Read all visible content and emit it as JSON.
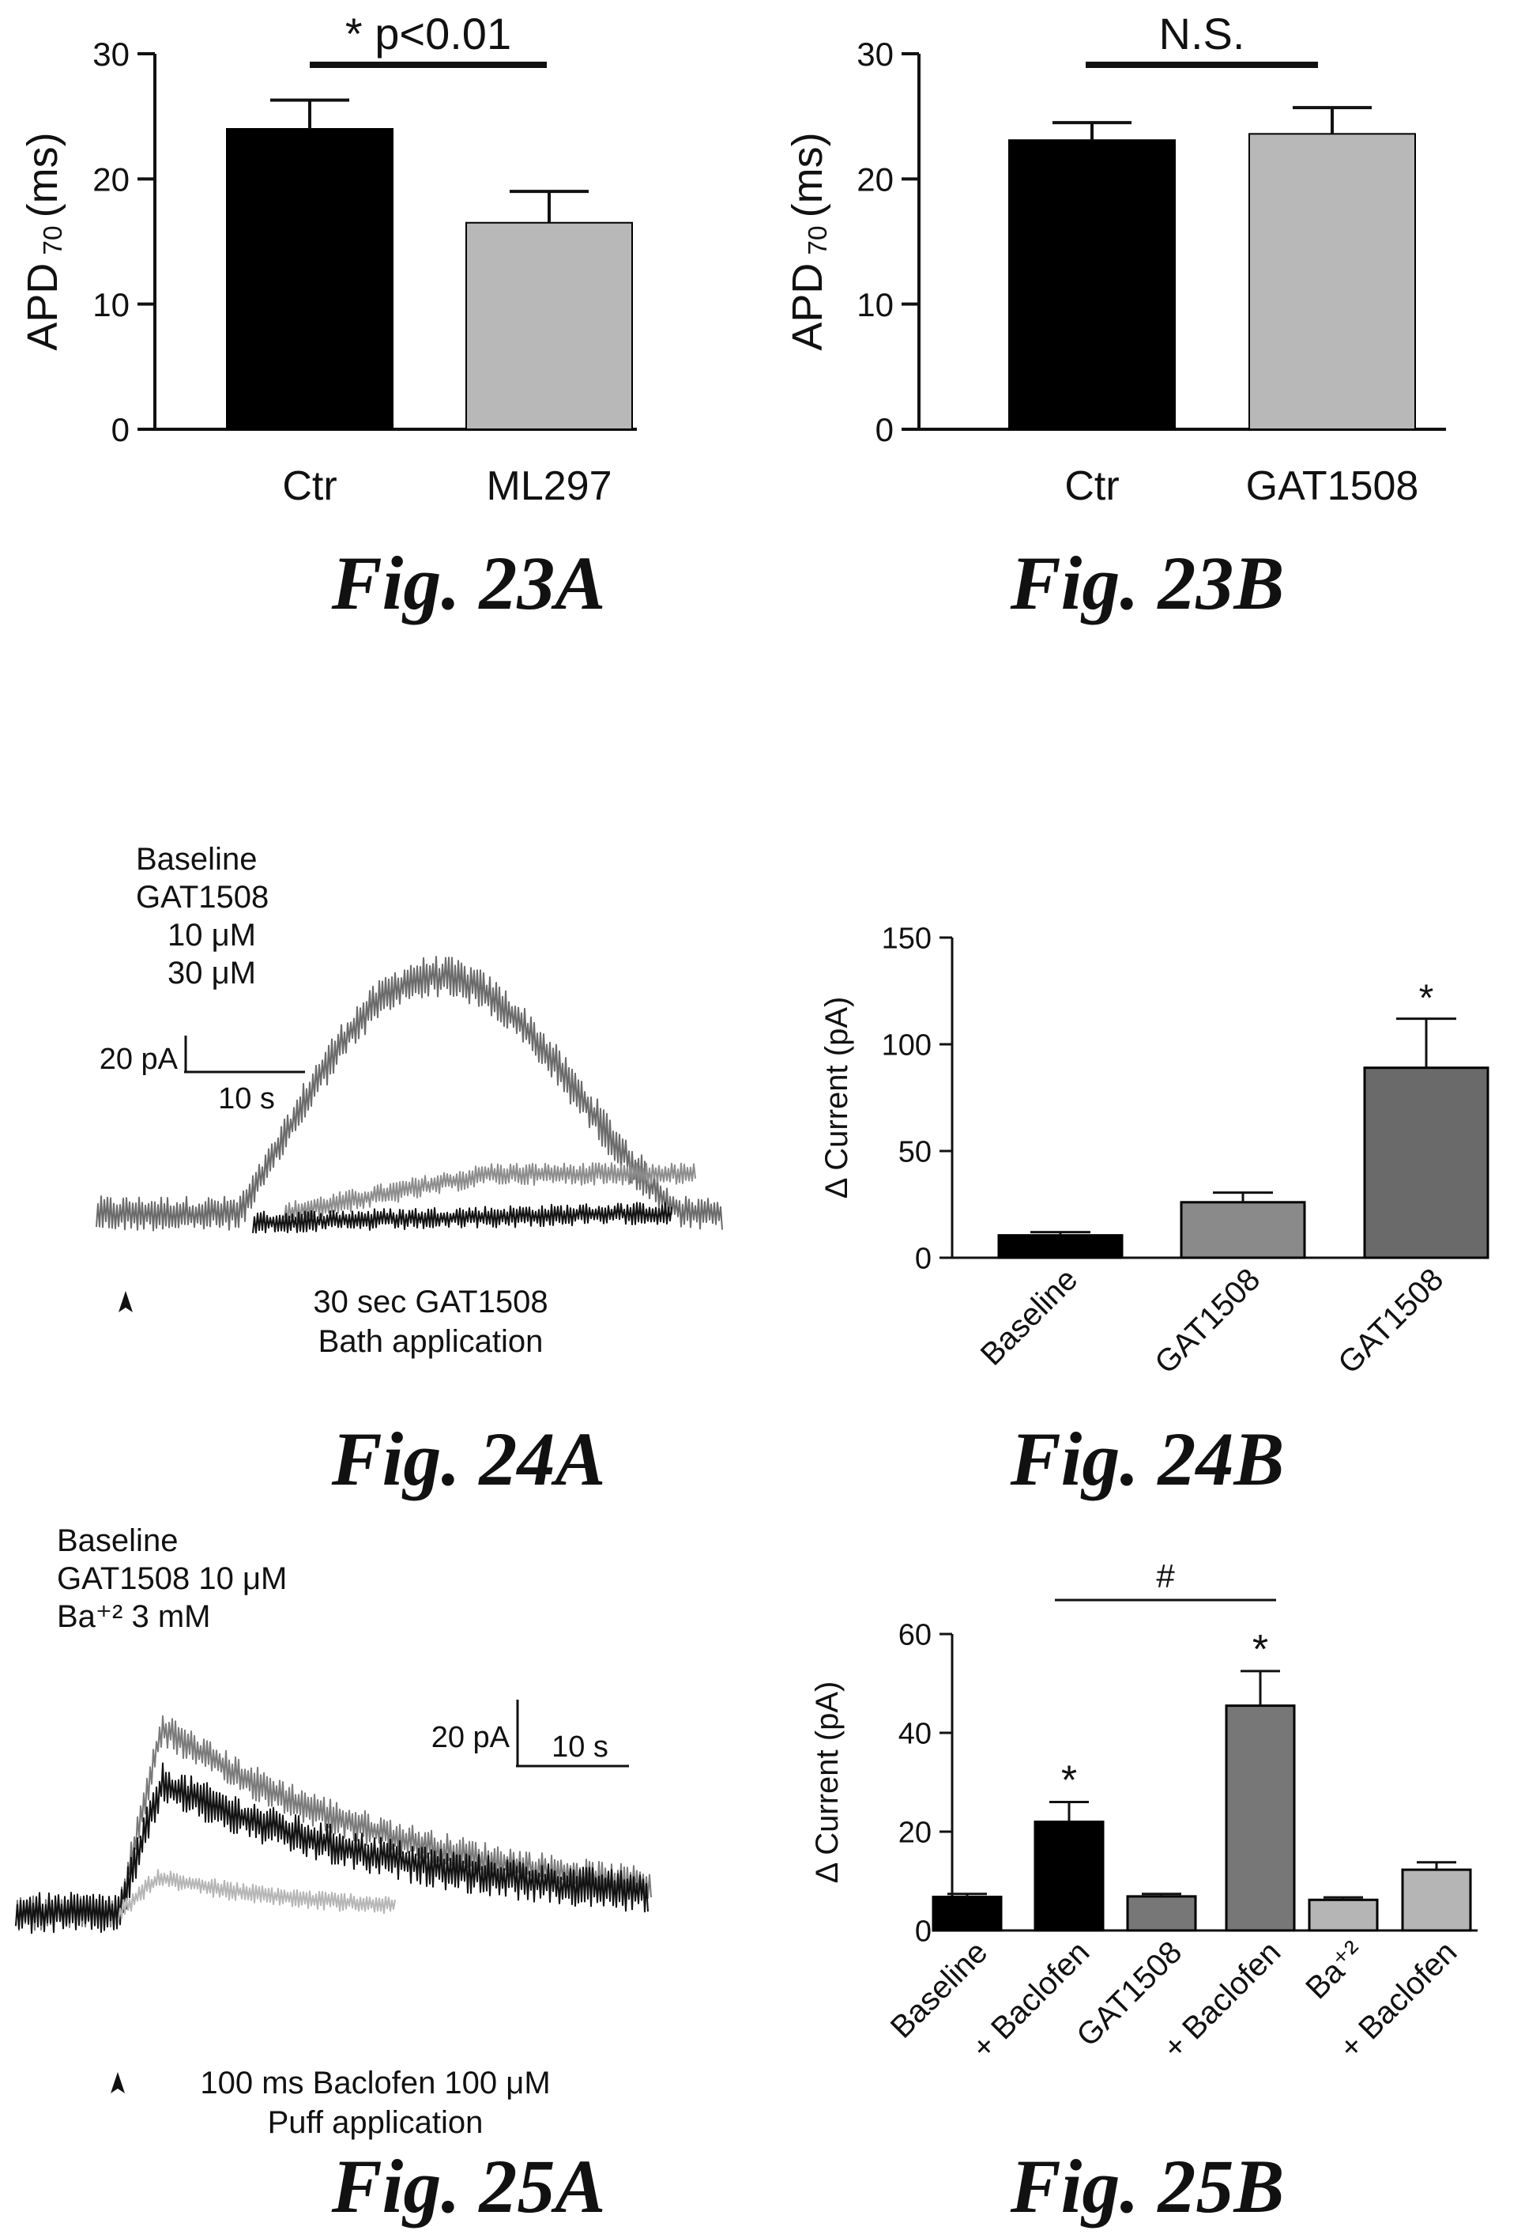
{
  "chart_data": [
    {
      "id": "fig23a",
      "type": "bar",
      "categories": [
        "Ctr",
        "ML297"
      ],
      "values": [
        24.0,
        16.5
      ],
      "errors": [
        2.3,
        2.5
      ],
      "ylabel_main": "APD",
      "ylabel_sub": "70",
      "ylabel_unit": "(ms)",
      "ylim": [
        0,
        30
      ],
      "yticks": [
        0,
        10,
        20,
        30
      ],
      "colors": [
        "#000000",
        "#b8b8b8"
      ],
      "significance": {
        "text": "* p<0.01",
        "from": 0,
        "to": 1
      },
      "caption": "Fig. 23A"
    },
    {
      "id": "fig23b",
      "type": "bar",
      "categories": [
        "Ctr",
        "GAT1508"
      ],
      "values": [
        23.1,
        23.6
      ],
      "errors": [
        1.4,
        2.1
      ],
      "ylabel_main": "APD",
      "ylabel_sub": "70",
      "ylabel_unit": "(ms)",
      "ylim": [
        0,
        30
      ],
      "yticks": [
        0,
        10,
        20,
        30
      ],
      "colors": [
        "#000000",
        "#b8b8b8"
      ],
      "significance": {
        "text": "N.S.",
        "from": 0,
        "to": 1
      },
      "caption": "Fig. 23B"
    },
    {
      "id": "fig24a",
      "type": "line",
      "legend": [
        {
          "text": "Baseline",
          "color": "#111111"
        },
        {
          "text": "GAT1508",
          "color": "#555555"
        },
        {
          "text": "10 μM",
          "color": "#8a8a8a"
        },
        {
          "text": "30 μM",
          "color": "#6a6a6a"
        }
      ],
      "scalebar": {
        "y_label": "20 pA",
        "x_label": "10 s"
      },
      "annotation": [
        "30 sec GAT1508",
        "Bath application"
      ],
      "caption": "Fig. 24A"
    },
    {
      "id": "fig24b",
      "type": "bar",
      "categories": [
        "Baseline",
        "GAT1508",
        "GAT1508"
      ],
      "values": [
        10.5,
        26.0,
        89.0
      ],
      "errors": [
        1.5,
        4.5,
        23.0
      ],
      "ylabel": "Δ Current (pA)",
      "ylim": [
        0,
        150
      ],
      "yticks": [
        0,
        50,
        100,
        150
      ],
      "colors": [
        "#000000",
        "#8a8a8a",
        "#6a6a6a"
      ],
      "stars": [
        "",
        "",
        "*"
      ],
      "caption": "Fig. 24B"
    },
    {
      "id": "fig25a",
      "type": "line",
      "legend": [
        {
          "text": "Baseline",
          "color": "#111111"
        },
        {
          "text": "GAT1508 10 μM",
          "color": "#7a7a7a"
        },
        {
          "text": "Ba⁺² 3 mM",
          "color": "#b5b5b5"
        }
      ],
      "scalebar": {
        "y_label": "20 pA",
        "x_label": "10 s"
      },
      "annotation": [
        "100 ms Baclofen 100 μM",
        "Puff application"
      ],
      "caption": "Fig. 25A"
    },
    {
      "id": "fig25b",
      "type": "bar",
      "categories": [
        "Baseline",
        "+ Baclofen",
        "GAT1508",
        "+ Baclofen",
        "Ba⁺²",
        "+ Baclofen"
      ],
      "values": [
        6.8,
        22.0,
        6.9,
        45.5,
        6.2,
        12.3
      ],
      "errors": [
        0.6,
        4.0,
        0.5,
        7.0,
        0.5,
        1.5
      ],
      "ylabel": "Δ Current (pA)",
      "ylim": [
        0,
        60
      ],
      "yticks": [
        0,
        20,
        40,
        60
      ],
      "colors": [
        "#000000",
        "#000000",
        "#777777",
        "#777777",
        "#b5b5b5",
        "#b5b5b5"
      ],
      "stars": [
        "",
        "*",
        "",
        "*",
        "",
        ""
      ],
      "significance": {
        "text": "#",
        "from": 1,
        "to": 3
      },
      "caption": "Fig. 25B"
    }
  ]
}
